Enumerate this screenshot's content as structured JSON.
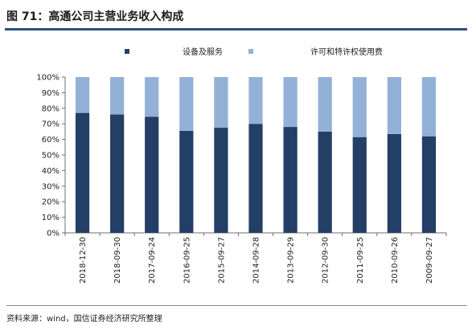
{
  "figure": {
    "title": "图 71：高通公司主营业务收入构成",
    "source": "资料来源：wind，国信证券经济研究所整理"
  },
  "chart_data": {
    "type": "bar",
    "stacked": true,
    "percent": true,
    "title": "",
    "xlabel": "",
    "ylabel": "",
    "ylim": [
      0,
      100
    ],
    "yticks": [
      "0%",
      "10%",
      "20%",
      "30%",
      "40%",
      "50%",
      "60%",
      "70%",
      "80%",
      "90%",
      "100%"
    ],
    "grid": false,
    "legend_position": "top",
    "categories": [
      "2018-12-30",
      "2018-09-30",
      "2017-09-24",
      "2016-09-25",
      "2015-09-27",
      "2014-09-28",
      "2013-09-29",
      "2012-09-30",
      "2011-09-25",
      "2010-09-26",
      "2009-09-27"
    ],
    "series": [
      {
        "name": "设备及服务",
        "color": "#243f66",
        "values": [
          77,
          76,
          74.5,
          65.5,
          67.5,
          70,
          68,
          65,
          61.5,
          63.5,
          62
        ]
      },
      {
        "name": "许可和特许权使用费",
        "color": "#93b1d7",
        "values": [
          23,
          24,
          25.5,
          34.5,
          32.5,
          30,
          32,
          35,
          38.5,
          36.5,
          38
        ]
      }
    ]
  }
}
